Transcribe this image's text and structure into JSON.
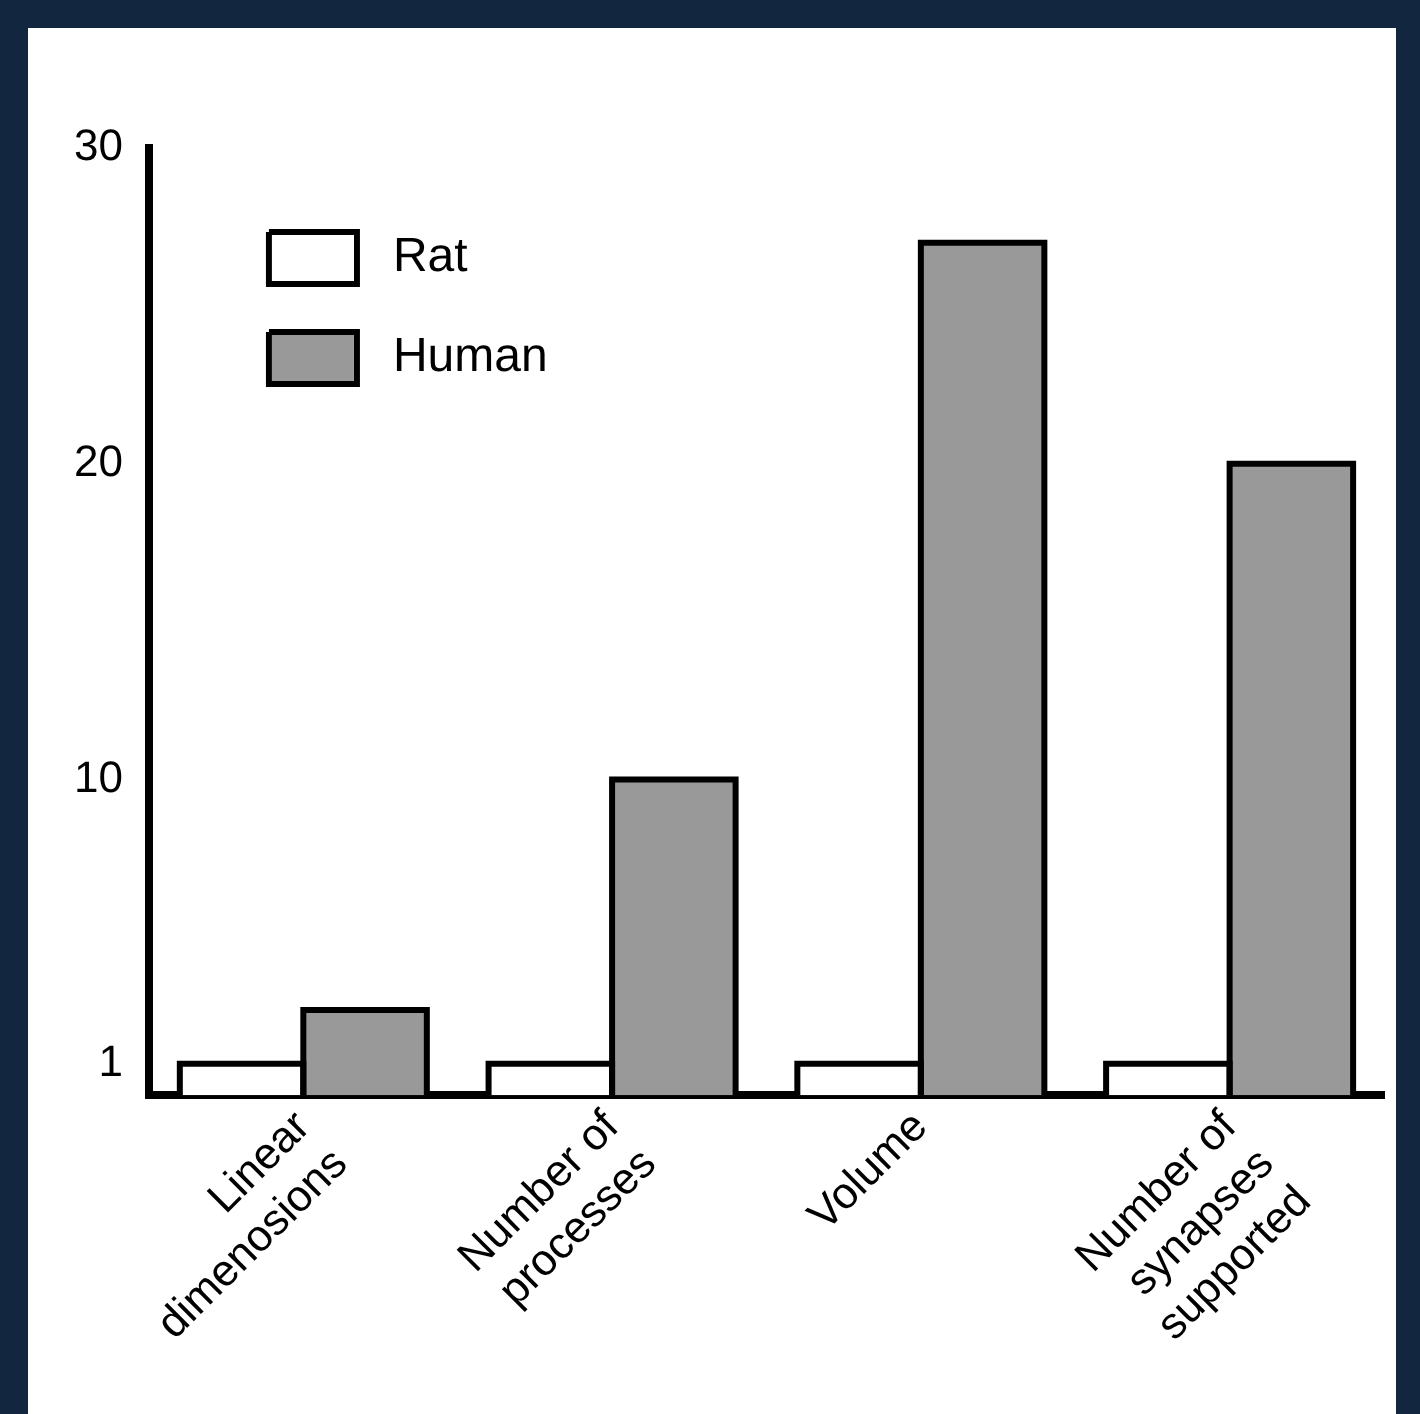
{
  "chart_data": {
    "type": "bar",
    "categories": [
      "Linear dimenosions",
      "Number of processes",
      "Volume",
      "Number of synapses supported"
    ],
    "series": [
      {
        "name": "Rat",
        "color": "#ffffff",
        "values": [
          1,
          1,
          1,
          1
        ]
      },
      {
        "name": "Human",
        "color": "#999999",
        "values": [
          2.7,
          10,
          27,
          20
        ]
      }
    ],
    "ylim": [
      0,
      30
    ],
    "yticks": [
      1,
      10,
      20,
      30
    ],
    "grid": false,
    "legend": "top left"
  }
}
